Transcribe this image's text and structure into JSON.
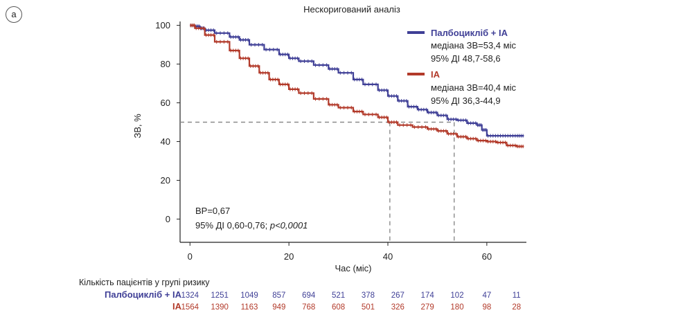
{
  "panel_label": "a",
  "chart_data": {
    "type": "line",
    "subtype": "kaplan-meier",
    "title": "Нескоригований аналіз",
    "xlabel": "Час (міс)",
    "ylabel": "ЗВ, %",
    "xlim": [
      -2,
      68
    ],
    "ylim": [
      -12,
      102
    ],
    "x_ticks": [
      0,
      20,
      40,
      60
    ],
    "y_ticks": [
      0,
      20,
      40,
      60,
      80,
      100
    ],
    "reference_y": 50,
    "medians": [
      40.4,
      53.4
    ],
    "legend_position": "top-right",
    "series": [
      {
        "name": "Палбоцикліб + IA",
        "color": "#3f3f96",
        "median_text": "медіана ЗВ=53,4 міс",
        "ci_text": "95% ДІ 48,7-58,6",
        "x": [
          0,
          1,
          2,
          3,
          5,
          8,
          10,
          12,
          15,
          18,
          20,
          22,
          25,
          28,
          30,
          33,
          35,
          38,
          40,
          42,
          44,
          46,
          48,
          50,
          52,
          54,
          56,
          58,
          59,
          60,
          62,
          64,
          66,
          67.5
        ],
        "y": [
          100,
          99.5,
          98.5,
          97.5,
          96,
          94,
          92.5,
          90,
          87.5,
          85,
          83,
          81.5,
          79.5,
          77.5,
          75.5,
          72,
          69.5,
          66.5,
          63.5,
          61,
          58,
          56.5,
          55,
          53.5,
          51.5,
          51,
          49.5,
          48.5,
          46,
          43,
          43,
          43,
          43,
          43
        ]
      },
      {
        "name": "IA",
        "color": "#b23a2a",
        "median_text": "медіана ЗВ=40,4 міс",
        "ci_text": "95% ДІ 36,3-44,9",
        "x": [
          0,
          1,
          3,
          5,
          8,
          10,
          12,
          14,
          16,
          18,
          20,
          22,
          25,
          28,
          30,
          33,
          35,
          38,
          40,
          42,
          45,
          48,
          50,
          52,
          54,
          56,
          58,
          60,
          62,
          64,
          66,
          67.5
        ],
        "y": [
          100,
          98.5,
          95,
          91.5,
          87,
          83,
          79,
          75.5,
          72,
          69.5,
          67,
          65,
          62,
          59,
          57.5,
          55.5,
          54,
          52.5,
          50,
          48.5,
          47.5,
          46.5,
          45.5,
          44,
          42.5,
          41.5,
          40.5,
          40,
          39.5,
          38,
          37.5,
          37.5
        ]
      }
    ],
    "annotations": {
      "hr": "ВР=0,67",
      "ci_prefix": "95% ДІ 0,60-0,76; ",
      "p_label": "p",
      "p_value": "<0,0001"
    },
    "risk_table": {
      "title": "Кількість пацієнтів у групі ризику",
      "times": [
        0,
        6,
        12,
        18,
        24,
        30,
        36,
        42,
        48,
        54,
        60,
        66
      ],
      "rows": [
        {
          "label": "Палбоцикліб + IA",
          "color": "#3f3f96",
          "values": [
            "1324",
            "1251",
            "1049",
            "857",
            "694",
            "521",
            "378",
            "267",
            "174",
            "102",
            "47",
            "11"
          ]
        },
        {
          "label": "IA",
          "color": "#b23a2a",
          "values": [
            "1564",
            "1390",
            "1163",
            "949",
            "768",
            "608",
            "501",
            "326",
            "279",
            "180",
            "98",
            "28"
          ]
        }
      ]
    }
  }
}
